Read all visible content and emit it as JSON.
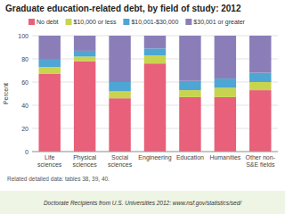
{
  "chart_data": {
    "type": "bar",
    "stacked": true,
    "title": "Graduate education-related debt, by field of study: 2012",
    "categories": [
      "Life\nsciences",
      "Physical\nsciences",
      "Social\nsciences",
      "Engineering",
      "Education",
      "Humanities",
      "Other non-\nS&E fields"
    ],
    "series": [
      {
        "name": "No debt",
        "color": "#e8607a",
        "values": [
          67,
          78,
          46,
          76,
          47,
          47,
          53
        ]
      },
      {
        "name": "$10,000 or less",
        "color": "#c8d44e",
        "values": [
          6,
          4,
          6,
          7,
          6,
          8,
          7
        ]
      },
      {
        "name": "$10,001-$30,000",
        "color": "#4da6d4",
        "values": [
          7,
          5,
          8,
          6,
          8,
          8,
          8
        ]
      },
      {
        "name": "$30,001 or greater",
        "color": "#8b7eb8",
        "values": [
          20,
          13,
          40,
          11,
          39,
          37,
          32
        ]
      }
    ],
    "ylabel": "Percent",
    "ylim": [
      0,
      100
    ],
    "yticks": [
      0,
      20,
      40,
      60,
      80,
      100
    ],
    "grid": true,
    "legend": "top",
    "annotations": [
      "Related detailed data: tables 38, 39, 40.",
      "Doctorate Recipients from U.S. Universities 2012: www.nsf.gov/statistics/sed/"
    ]
  }
}
